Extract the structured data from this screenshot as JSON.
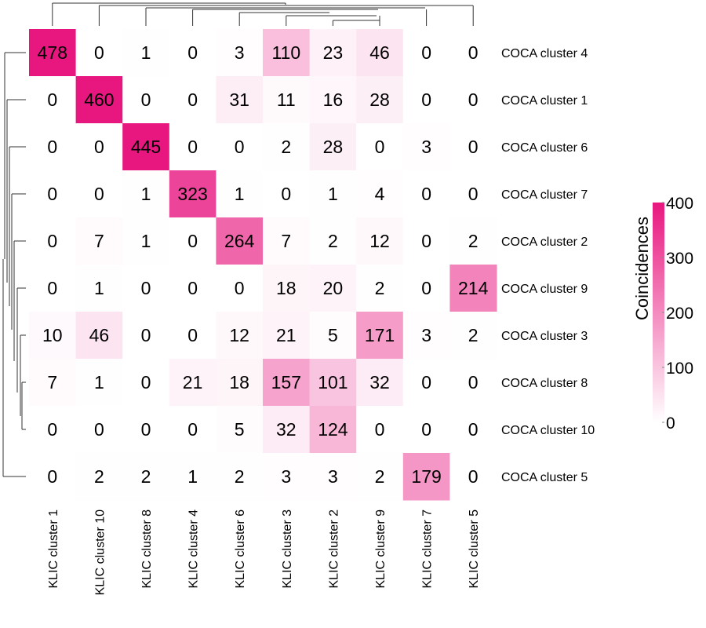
{
  "chart_data": {
    "type": "heatmap",
    "title": "",
    "xlabel": "",
    "ylabel": "",
    "columns": [
      "KLIC cluster 1",
      "KLIC cluster 10",
      "KLIC cluster 8",
      "KLIC cluster 4",
      "KLIC cluster 6",
      "KLIC cluster 3",
      "KLIC cluster 2",
      "KLIC cluster 9",
      "KLIC cluster 7",
      "KLIC cluster 5"
    ],
    "rows": [
      "COCA cluster 4",
      "COCA cluster 1",
      "COCA cluster 6",
      "COCA cluster 7",
      "COCA cluster 2",
      "COCA cluster 9",
      "COCA cluster 3",
      "COCA cluster 8",
      "COCA cluster 10",
      "COCA cluster 5"
    ],
    "values": [
      [
        478,
        0,
        1,
        0,
        3,
        110,
        23,
        46,
        0,
        0
      ],
      [
        0,
        460,
        0,
        0,
        31,
        11,
        16,
        28,
        0,
        0
      ],
      [
        0,
        0,
        445,
        0,
        0,
        2,
        28,
        0,
        3,
        0
      ],
      [
        0,
        0,
        1,
        323,
        1,
        0,
        1,
        4,
        0,
        0
      ],
      [
        0,
        7,
        1,
        0,
        264,
        7,
        2,
        12,
        0,
        2
      ],
      [
        0,
        1,
        0,
        0,
        0,
        18,
        20,
        2,
        0,
        214
      ],
      [
        10,
        46,
        0,
        0,
        12,
        21,
        5,
        171,
        3,
        2
      ],
      [
        7,
        1,
        0,
        21,
        18,
        157,
        101,
        32,
        0,
        0
      ],
      [
        0,
        0,
        0,
        0,
        5,
        32,
        124,
        0,
        0,
        0
      ],
      [
        0,
        2,
        2,
        1,
        2,
        3,
        3,
        2,
        179,
        0
      ]
    ],
    "colorbar": {
      "title": "Coincidences",
      "ticks": [
        0,
        100,
        200,
        300,
        400
      ],
      "range": [
        0,
        400
      ],
      "low_color": "#ffffff",
      "high_color": "#e8177f"
    },
    "row_dendrogram": true,
    "column_dendrogram": true
  }
}
